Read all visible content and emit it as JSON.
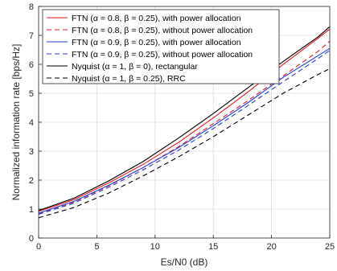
{
  "chart_data": {
    "type": "line",
    "xlabel": "Es/N0 (dB)",
    "ylabel": "Normalized information rate [bps/Hz]",
    "xlim": [
      0,
      25
    ],
    "ylim": [
      0,
      8
    ],
    "xticks": [
      "0",
      "5",
      "10",
      "15",
      "20",
      "25"
    ],
    "yticks": [
      "0",
      "1",
      "2",
      "3",
      "4",
      "5",
      "6",
      "7",
      "8"
    ],
    "grid": true,
    "legend_position": "top-left",
    "x": [
      0,
      3,
      6,
      9,
      12,
      15,
      18,
      21,
      24,
      25
    ],
    "series": [
      {
        "name": "FTN (α = 0.8, β = 0.25), with power allocation",
        "color": "#e31a1c",
        "dash": "solid",
        "values": [
          0.92,
          1.32,
          1.9,
          2.55,
          3.3,
          4.15,
          5.05,
          6.0,
          6.9,
          7.22
        ]
      },
      {
        "name": "FTN (α = 0.8, β = 0.25), without power allocation",
        "color": "#e31a1c",
        "dash": "dashed",
        "values": [
          0.85,
          1.24,
          1.8,
          2.44,
          3.15,
          3.95,
          4.75,
          5.6,
          6.45,
          6.8
        ]
      },
      {
        "name": "FTN (α = 0.9, β = 0.25), with power allocation",
        "color": "#1f3fd6",
        "dash": "solid",
        "values": [
          0.86,
          1.26,
          1.82,
          2.44,
          3.12,
          3.88,
          4.68,
          5.55,
          6.3,
          6.55
        ]
      },
      {
        "name": "FTN (α = 0.9, β = 0.25), without power allocation",
        "color": "#1f3fd6",
        "dash": "dashed",
        "values": [
          0.82,
          1.2,
          1.75,
          2.36,
          3.03,
          3.78,
          4.58,
          5.4,
          6.2,
          6.48
        ]
      },
      {
        "name": "Nyquist (α = 1, β = 0), rectangular",
        "color": "#000000",
        "dash": "solid",
        "values": [
          0.95,
          1.37,
          1.97,
          2.65,
          3.45,
          4.3,
          5.2,
          6.1,
          6.95,
          7.3
        ]
      },
      {
        "name": "Nyquist (α = 1, β = 0.25), RRC",
        "color": "#000000",
        "dash": "dashed",
        "values": [
          0.7,
          1.05,
          1.55,
          2.15,
          2.8,
          3.5,
          4.25,
          5.0,
          5.65,
          5.85
        ]
      }
    ]
  }
}
